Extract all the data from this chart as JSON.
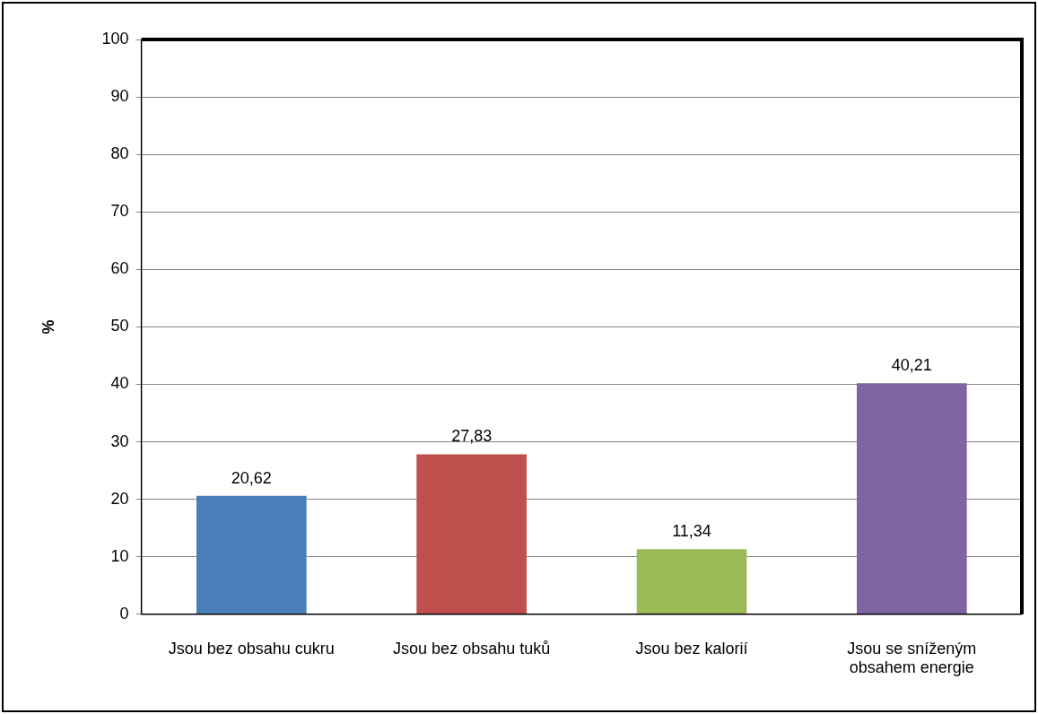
{
  "chart_data": {
    "type": "bar",
    "ylabel": "%",
    "categories": [
      "Jsou bez obsahu cukru",
      "Jsou bez obsahu tuků",
      "Jsou bez kalorií",
      "Jsou se sníženým obsahem energie"
    ],
    "values": [
      20.62,
      27.83,
      11.34,
      40.21
    ],
    "colors": [
      "#4a7ebb",
      "#c0504d",
      "#9bbb59",
      "#8064a2"
    ],
    "value_labels": [
      "20,62",
      "27,83",
      "11,34",
      "40,21"
    ],
    "ylim": [
      0,
      100
    ],
    "yticks": [
      0,
      10,
      20,
      30,
      40,
      50,
      60,
      70,
      80,
      90,
      100
    ],
    "grid": "y",
    "legend": false
  }
}
